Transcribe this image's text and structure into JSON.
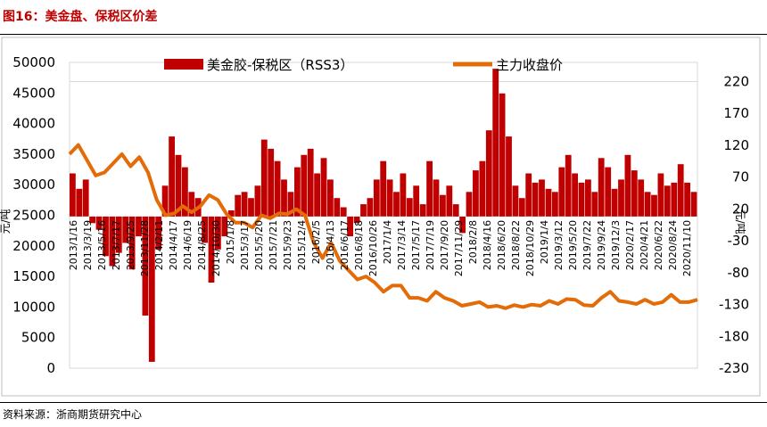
{
  "figure_title": "图16：美金盘、保税区价差",
  "source_note": "资料来源：浙商期货研究中心",
  "colors": {
    "bar": "#c00000",
    "line": "#e36c09",
    "title": "#c00000"
  },
  "chart_data": {
    "type": "bar+line",
    "legend": {
      "placement": "top-center",
      "entries": [
        {
          "name": "美金胶-保税区（RSS3）",
          "type": "bar"
        },
        {
          "name": "主力收盘价",
          "type": "line"
        }
      ]
    },
    "y_left": {
      "label": "元/吨",
      "ticks": [
        0,
        5000,
        10000,
        15000,
        20000,
        25000,
        30000,
        35000,
        40000,
        45000,
        50000
      ],
      "range": [
        0,
        50000
      ]
    },
    "y_right": {
      "label": "元/吨",
      "ticks": [
        -230,
        -180,
        -130,
        -80,
        -30,
        20,
        70,
        120,
        170,
        220
      ],
      "range": [
        -230,
        250
      ]
    },
    "bar_baseline_left": 24800,
    "x_ticks": [
      "2013/1/16",
      "2013/3/19",
      "2013/5/16",
      "2013/7/17",
      "2013/9/25",
      "2013/11/28",
      "2014/2/11",
      "2014/4/17",
      "2014/6/19",
      "2014/8/25",
      "2014/10/30",
      "2015/1/8",
      "2015/3/17",
      "2015/5/20",
      "2015/7/21",
      "2015/9/23",
      "2015/12/4",
      "2016/2/5",
      "2016/4/13",
      "2016/6/17",
      "2016/8/18",
      "2016/10/26",
      "2017/1/4",
      "2017/3/14",
      "2017/5/17",
      "2017/7/19",
      "2017/9/20",
      "2017/11/29",
      "2018/2/8",
      "2018/4/16",
      "2018/6/20",
      "2018/8/22",
      "2018/10/29",
      "2019/1/4",
      "2019/3/12",
      "2019/5/20",
      "2019/7/22",
      "2019/9/24",
      "2019/12/3",
      "2020/2/17",
      "2020/4/21",
      "2020/6/22",
      "2020/8/24",
      "2020/11/10"
    ],
    "bar_series": {
      "name": "美金胶-保税区（RSS3）",
      "axis": "right",
      "values": [
        70,
        45,
        60,
        -10,
        -20,
        -60,
        -75,
        -55,
        -40,
        -80,
        -30,
        -150,
        -220,
        -50,
        50,
        130,
        100,
        80,
        40,
        30,
        -40,
        -100,
        -50,
        -30,
        10,
        35,
        40,
        30,
        50,
        125,
        110,
        90,
        60,
        40,
        80,
        100,
        110,
        70,
        95,
        60,
        30,
        15,
        -30,
        -10,
        20,
        30,
        60,
        90,
        60,
        40,
        70,
        30,
        50,
        20,
        90,
        60,
        35,
        50,
        20,
        -25,
        40,
        75,
        90,
        140,
        240,
        200,
        130,
        50,
        30,
        70,
        55,
        60,
        45,
        40,
        80,
        100,
        70,
        55,
        60,
        40,
        95,
        80,
        45,
        60,
        100,
        75,
        60,
        40,
        35,
        70,
        50,
        55,
        85,
        55,
        40
      ],
      "pos_range_right": [
        20,
        240
      ],
      "neg_range_right": [
        -220,
        20
      ]
    },
    "line_series": {
      "name": "主力收盘价",
      "axis": "left",
      "values": [
        35000,
        36500,
        34000,
        31500,
        32000,
        33500,
        35000,
        33000,
        34500,
        32000,
        27500,
        25000,
        25300,
        26500,
        25500,
        26500,
        28300,
        27500,
        25200,
        23800,
        23800,
        23000,
        25000,
        24500,
        25300,
        25200,
        26000,
        25000,
        20500,
        18000,
        20500,
        17500,
        16000,
        14500,
        15000,
        14000,
        12500,
        13500,
        13500,
        11500,
        11500,
        11000,
        12500,
        11500,
        11000,
        10200,
        10500,
        10800,
        10000,
        10200,
        9800,
        10300,
        10000,
        10400,
        10200,
        11000,
        10500,
        11300,
        11200,
        10300,
        10200,
        11500,
        12500,
        11000,
        10800,
        10500,
        11200,
        10500,
        10800,
        12000,
        10800,
        10800,
        11200
      ]
    }
  }
}
